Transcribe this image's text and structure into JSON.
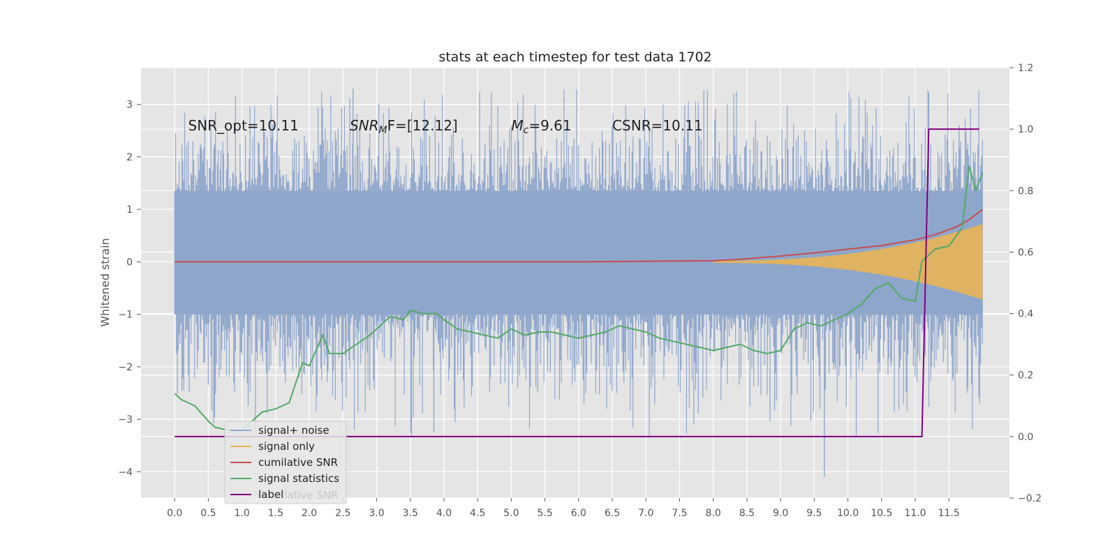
{
  "chart_data": {
    "type": "line",
    "title": "stats at each timestep for test data 1702",
    "ylabel": "Whitened strain",
    "xlabel": "",
    "xlim": [
      -0.5,
      12.4
    ],
    "ylim": [
      -4.5,
      3.7
    ],
    "y2lim": [
      -0.2,
      1.2
    ],
    "grid": true,
    "legend_position": "lower-left",
    "x_ticks": [
      "0.0",
      "0.5",
      "1.0",
      "1.5",
      "2.0",
      "2.5",
      "3.0",
      "3.5",
      "4.0",
      "4.5",
      "5.0",
      "5.5",
      "6.0",
      "6.5",
      "7.0",
      "7.5",
      "8.0",
      "8.5",
      "9.0",
      "9.5",
      "10.0",
      "10.5",
      "11.0",
      "11.5"
    ],
    "y_ticks": [
      "3",
      "2",
      "1",
      "0",
      "−1",
      "−2",
      "−3",
      "−4"
    ],
    "y2_ticks": [
      "1.2",
      "1.0",
      "0.8",
      "0.6",
      "0.4",
      "0.2",
      "0.0",
      "−0.2"
    ],
    "annotations": [
      {
        "text": "SNR_opt=10.11",
        "x": 0.2,
        "y": 2.6
      },
      {
        "main": "SNR",
        "sub": "M",
        "rest": "F=[12.12]",
        "x": 2.6,
        "y": 2.6
      },
      {
        "main": "M",
        "sub": "c",
        "rest": "=9.61",
        "x": 5.0,
        "y": 2.6
      },
      {
        "text": "CSNR=10.11",
        "x": 6.5,
        "y": 2.6
      }
    ],
    "series": [
      {
        "name": "signal+ noise",
        "color": "#8fa6cb",
        "kind": "noise",
        "x_range": [
          0.0,
          12.0
        ],
        "envelope_upper": 1.35,
        "envelope_lower": -1.0,
        "max": 3.3,
        "min": -4.1
      },
      {
        "name": "signal only",
        "color": "#e8b555",
        "kind": "chirp",
        "x_range": [
          8.0,
          12.0
        ],
        "amplitude_start": 0.0,
        "amplitude_end": 0.7
      },
      {
        "name": "cumilative SNR",
        "color": "#c44e52",
        "x": [
          0.0,
          2.0,
          4.0,
          6.0,
          8.0,
          8.3,
          9.0,
          9.5,
          10.0,
          10.5,
          11.0,
          11.3,
          11.6,
          11.8,
          12.0
        ],
        "values": [
          0.0,
          0.0,
          0.0,
          0.0,
          0.02,
          0.04,
          0.11,
          0.17,
          0.24,
          0.31,
          0.42,
          0.52,
          0.66,
          0.8,
          1.0
        ]
      },
      {
        "name": "signal statistics",
        "axis": "right",
        "color": "#55a868",
        "x": [
          0.0,
          0.1,
          0.2,
          0.3,
          0.5,
          0.6,
          0.8,
          1.0,
          1.2,
          1.3,
          1.5,
          1.7,
          1.9,
          2.0,
          2.2,
          2.3,
          2.5,
          2.7,
          2.9,
          3.0,
          3.2,
          3.4,
          3.5,
          3.7,
          3.9,
          4.0,
          4.2,
          4.4,
          4.6,
          4.8,
          5.0,
          5.2,
          5.4,
          5.6,
          5.8,
          6.0,
          6.2,
          6.4,
          6.6,
          6.8,
          7.0,
          7.2,
          7.4,
          7.6,
          7.8,
          8.0,
          8.2,
          8.4,
          8.6,
          8.8,
          9.0,
          9.2,
          9.4,
          9.6,
          9.8,
          10.0,
          10.2,
          10.4,
          10.6,
          10.8,
          11.0,
          11.1,
          11.3,
          11.5,
          11.7,
          11.8,
          11.9,
          12.0
        ],
        "values": [
          0.14,
          0.12,
          0.11,
          0.1,
          0.05,
          0.03,
          0.02,
          0.02,
          0.06,
          0.08,
          0.09,
          0.11,
          0.24,
          0.23,
          0.33,
          0.27,
          0.27,
          0.3,
          0.33,
          0.35,
          0.39,
          0.38,
          0.41,
          0.4,
          0.4,
          0.38,
          0.35,
          0.34,
          0.33,
          0.32,
          0.35,
          0.33,
          0.34,
          0.34,
          0.33,
          0.32,
          0.33,
          0.34,
          0.36,
          0.35,
          0.34,
          0.32,
          0.31,
          0.3,
          0.29,
          0.28,
          0.29,
          0.3,
          0.28,
          0.27,
          0.28,
          0.35,
          0.37,
          0.36,
          0.38,
          0.4,
          0.43,
          0.48,
          0.5,
          0.45,
          0.44,
          0.57,
          0.61,
          0.62,
          0.68,
          0.88,
          0.8,
          0.86
        ]
      },
      {
        "name": "label",
        "axis": "right",
        "color": "#800080",
        "x": [
          0.0,
          11.1,
          11.2,
          11.95
        ],
        "values": [
          0.0,
          0.0,
          1.0,
          1.0
        ]
      }
    ]
  },
  "legend_ghost_text": "lative SNR"
}
